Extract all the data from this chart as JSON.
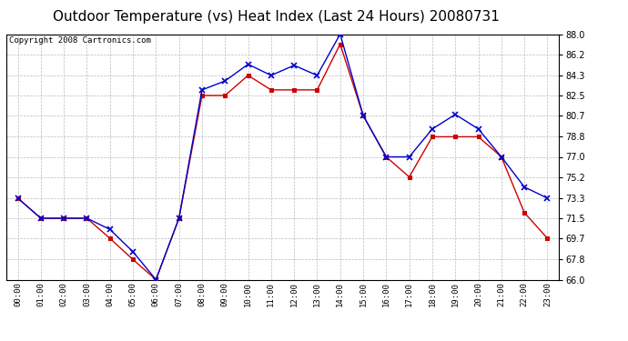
{
  "title": "Outdoor Temperature (vs) Heat Index (Last 24 Hours) 20080731",
  "copyright": "Copyright 2008 Cartronics.com",
  "hours": [
    "00:00",
    "01:00",
    "02:00",
    "03:00",
    "04:00",
    "05:00",
    "06:00",
    "07:00",
    "08:00",
    "09:00",
    "10:00",
    "11:00",
    "12:00",
    "13:00",
    "14:00",
    "15:00",
    "16:00",
    "17:00",
    "18:00",
    "19:00",
    "20:00",
    "21:00",
    "22:00",
    "23:00"
  ],
  "temp": [
    73.3,
    71.5,
    71.5,
    71.5,
    69.7,
    67.8,
    66.0,
    71.5,
    82.5,
    82.5,
    84.3,
    83.0,
    83.0,
    83.0,
    87.1,
    80.7,
    77.0,
    75.2,
    78.8,
    78.8,
    78.8,
    77.0,
    72.0,
    69.7
  ],
  "heat_index": [
    73.3,
    71.5,
    71.5,
    71.5,
    70.5,
    68.5,
    66.0,
    71.5,
    83.0,
    83.8,
    85.3,
    84.3,
    85.2,
    84.3,
    88.0,
    80.7,
    77.0,
    77.0,
    79.5,
    80.8,
    79.5,
    77.0,
    74.3,
    73.3
  ],
  "temp_color": "#cc0000",
  "heat_index_color": "#0000cc",
  "temp_marker": "s",
  "heat_index_marker": "x",
  "ylim": [
    66.0,
    88.0
  ],
  "yticks": [
    66.0,
    67.8,
    69.7,
    71.5,
    73.3,
    75.2,
    77.0,
    78.8,
    80.7,
    82.5,
    84.3,
    86.2,
    88.0
  ],
  "background_color": "#ffffff",
  "plot_bg_color": "#ffffff",
  "grid_color": "#bbbbbb",
  "title_fontsize": 11,
  "copyright_fontsize": 6.5
}
